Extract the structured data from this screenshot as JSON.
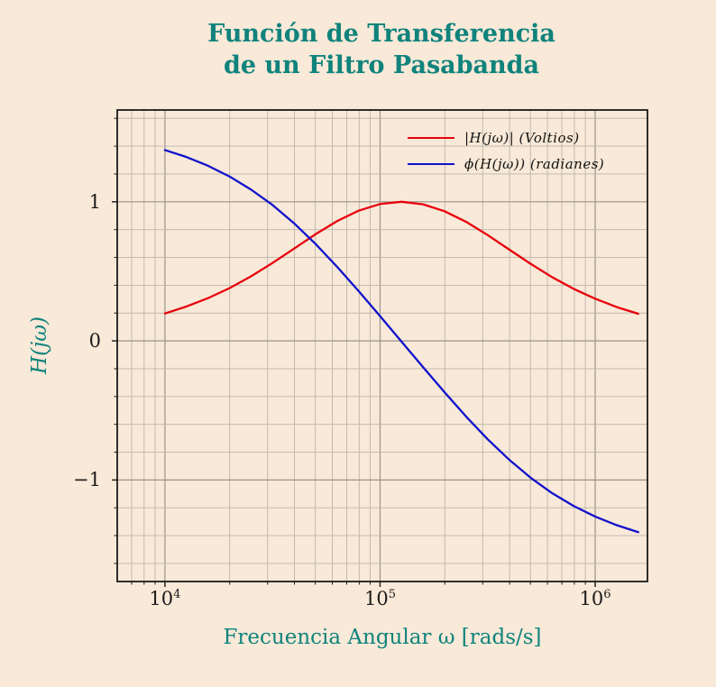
{
  "title": {
    "line1": "Función de Transferencia",
    "line2": "de un Filtro Pasabanda"
  },
  "axes": {
    "ylabel": "H(jω)",
    "xlabel": "Frecuencia Angular ω [rads/s]",
    "x_tick_base": "10",
    "x_tick_exponents": [
      "4",
      "5",
      "6"
    ],
    "x_tick_values": [
      10000,
      100000,
      1000000
    ],
    "y_tick_labels": [
      "1",
      "0",
      "−1"
    ],
    "y_tick_values": [
      1,
      0,
      -1
    ]
  },
  "legend": {
    "entries": [
      {
        "label": "|H(jω)| (Voltios)",
        "color": "#e8000d"
      },
      {
        "label": "ϕ(H(jω)) (radianes)",
        "color": "#1212cc"
      }
    ]
  },
  "colors": {
    "background": "#f8e9d8",
    "accent_teal": "#0f837c",
    "magnitude_red": "#e8000d",
    "phase_blue": "#1212cc",
    "grid_minor": "#bdb6ac",
    "grid_major": "#9a938a",
    "spine": "#1a1a1a",
    "tick_text": "#1c1c1c"
  },
  "chart_data": {
    "type": "line",
    "title": "Función de Transferencia de un Filtro Pasabanda",
    "xlabel": "Frecuencia Angular ω [rads/s]",
    "ylabel": "H(jω)",
    "x_scale": "log",
    "grid": true,
    "legend_position": "upper right",
    "xlim": [
      6000,
      1750000
    ],
    "ylim": [
      -1.73,
      1.66
    ],
    "x_ticks_major": [
      10000,
      100000,
      1000000
    ],
    "y_ticks_major": [
      -1,
      0,
      1
    ],
    "y_minor_step": 0.2,
    "x": [
      10000,
      12589,
      15849,
      19953,
      25119,
      31623,
      39811,
      50119,
      63096,
      79433,
      100000,
      125893,
      158489,
      199526,
      251189,
      316228,
      398107,
      501187,
      630957,
      794328,
      1000000,
      1258925,
      1584893
    ],
    "series": [
      {
        "name": "|H(jω)| (Voltios)",
        "color": "#e8000d",
        "values": [
          0.197,
          0.247,
          0.307,
          0.379,
          0.464,
          0.56,
          0.663,
          0.767,
          0.861,
          0.936,
          0.984,
          1.0,
          0.982,
          0.932,
          0.856,
          0.761,
          0.657,
          0.554,
          0.458,
          0.374,
          0.303,
          0.243,
          0.195
        ]
      },
      {
        "name": "ϕ(H(jω)) (radianes)",
        "color": "#1212cc",
        "values": [
          1.372,
          1.322,
          1.259,
          1.182,
          1.088,
          0.977,
          0.846,
          0.697,
          0.533,
          0.359,
          0.178,
          -0.006,
          -0.189,
          -0.37,
          -0.544,
          -0.707,
          -0.854,
          -0.984,
          -1.095,
          -1.187,
          -1.263,
          -1.325,
          -1.375
        ]
      }
    ]
  }
}
